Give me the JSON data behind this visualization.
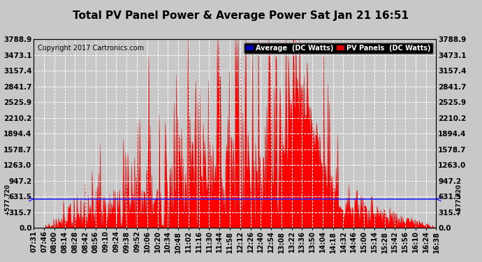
{
  "title": "Total PV Panel Power & Average Power Sat Jan 21 16:51",
  "copyright": "Copyright 2017 Cartronics.com",
  "average_value": 577.72,
  "average_label": "+577.720",
  "yticks": [
    0.0,
    315.7,
    631.5,
    947.2,
    1263.0,
    1578.7,
    1894.4,
    2210.2,
    2525.9,
    2841.7,
    3157.4,
    3473.1,
    3788.9
  ],
  "ymax": 3788.9,
  "ymin": 0.0,
  "legend_avg_color": "#0000bb",
  "legend_avg_label": "Average  (DC Watts)",
  "legend_pv_color": "#dd0000",
  "legend_pv_label": "PV Panels  (DC Watts)",
  "fill_color": "#ff0000",
  "line_color": "#cc0000",
  "avg_line_color": "#2222ff",
  "background_color": "#c8c8c8",
  "plot_bg_color": "#c8c8c8",
  "grid_color": "#ffffff",
  "grid_style": "--",
  "title_fontsize": 11,
  "copyright_fontsize": 7,
  "tick_fontsize": 7.5,
  "xtick_labels": [
    "07:31",
    "07:46",
    "08:00",
    "08:14",
    "08:28",
    "08:42",
    "08:56",
    "09:10",
    "09:24",
    "09:38",
    "09:52",
    "10:06",
    "10:20",
    "10:34",
    "10:48",
    "11:02",
    "11:16",
    "11:30",
    "11:44",
    "11:58",
    "12:12",
    "12:26",
    "12:40",
    "12:54",
    "13:08",
    "13:22",
    "13:36",
    "13:50",
    "14:04",
    "14:18",
    "14:32",
    "14:46",
    "15:00",
    "15:14",
    "15:28",
    "15:42",
    "15:56",
    "16:10",
    "16:24",
    "16:38"
  ],
  "num_points": 540,
  "seed": 12345
}
